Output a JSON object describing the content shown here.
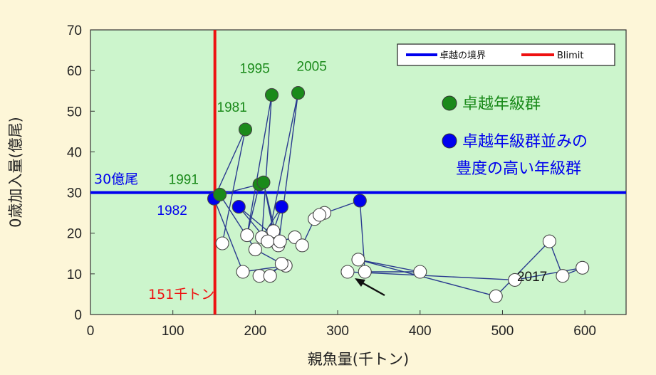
{
  "chart_data": {
    "type": "scatter",
    "xlabel": "親魚量(千トン)",
    "ylabel": "0歳加入量(億尾)",
    "xlim": [
      0,
      650
    ],
    "ylim": [
      0,
      70
    ],
    "x_ticks": [
      "0",
      "100",
      "200",
      "300",
      "400",
      "500",
      "600"
    ],
    "y_ticks": [
      "0",
      "10",
      "20",
      "30",
      "40",
      "50",
      "60",
      "70"
    ],
    "grid": false,
    "legend_position": "top-right",
    "legend": [
      {
        "label": "卓越の境界",
        "color": "#0000ee"
      },
      {
        "label": "Blimit",
        "color": "#ee1111"
      }
    ],
    "reference_lines": [
      {
        "orientation": "horizontal",
        "value": 30,
        "label": "30億尾",
        "color": "#0000ee"
      },
      {
        "orientation": "vertical",
        "value": 151,
        "label": "151千トン",
        "color": "#ee1111"
      }
    ],
    "categories_legend": [
      {
        "label": "卓越年級群",
        "color": "#1a8a1a"
      },
      {
        "label": "卓越年級群並みの豊度の高い年級群",
        "lines": [
          "卓越年級群並みの",
          "豊度の高い年級群"
        ],
        "color": "#0000ee"
      }
    ],
    "series": [
      {
        "style": "connected",
        "points": [
          {
            "x": 160,
            "y": 17.5,
            "cls": "white"
          },
          {
            "x": 188,
            "y": 45.5,
            "cls": "green"
          },
          {
            "x": 150,
            "y": 28.5,
            "cls": "blue"
          },
          {
            "x": 185,
            "y": 10.5,
            "cls": "white"
          },
          {
            "x": 237,
            "y": 12.0,
            "cls": "white"
          },
          {
            "x": 205,
            "y": 9.5,
            "cls": "white"
          },
          {
            "x": 218,
            "y": 9.5,
            "cls": "white"
          },
          {
            "x": 232,
            "y": 12.5,
            "cls": "white"
          },
          {
            "x": 200,
            "y": 16.0,
            "cls": "white"
          },
          {
            "x": 157,
            "y": 29.5,
            "cls": "green"
          },
          {
            "x": 205,
            "y": 32.0,
            "cls": "green"
          },
          {
            "x": 190,
            "y": 19.5,
            "cls": "white"
          },
          {
            "x": 220,
            "y": 54.0,
            "cls": "green"
          },
          {
            "x": 208,
            "y": 19.0,
            "cls": "white"
          },
          {
            "x": 232,
            "y": 26.5,
            "cls": "blue"
          },
          {
            "x": 222,
            "y": 20.5,
            "cls": "white"
          },
          {
            "x": 210,
            "y": 32.5,
            "cls": "green"
          },
          {
            "x": 228,
            "y": 17.0,
            "cls": "white"
          },
          {
            "x": 252,
            "y": 54.5,
            "cls": "green"
          },
          {
            "x": 215,
            "y": 18.0,
            "cls": "white"
          },
          {
            "x": 180,
            "y": 26.5,
            "cls": "blue"
          },
          {
            "x": 230,
            "y": 18.0,
            "cls": "white"
          },
          {
            "x": 248,
            "y": 19.0,
            "cls": "white"
          },
          {
            "x": 257,
            "y": 17.0,
            "cls": "white"
          },
          {
            "x": 272,
            "y": 23.5,
            "cls": "white"
          },
          {
            "x": 284,
            "y": 25.0,
            "cls": "white"
          },
          {
            "x": 278,
            "y": 24.5,
            "cls": "white"
          },
          {
            "x": 327,
            "y": 28.0,
            "cls": "blue"
          },
          {
            "x": 333,
            "y": 10.5,
            "cls": "white"
          },
          {
            "x": 400,
            "y": 10.5,
            "cls": "white"
          },
          {
            "x": 325,
            "y": 13.5,
            "cls": "white"
          },
          {
            "x": 492,
            "y": 4.5,
            "cls": "white"
          },
          {
            "x": 557,
            "y": 18.0,
            "cls": "white"
          },
          {
            "x": 573,
            "y": 9.5,
            "cls": "white"
          },
          {
            "x": 597,
            "y": 11.5,
            "cls": "white"
          },
          {
            "x": 515,
            "y": 8.5,
            "cls": "white"
          },
          {
            "x": 312,
            "y": 10.5,
            "cls": "white"
          }
        ]
      }
    ],
    "point_labels": [
      {
        "text": "1981",
        "x": 188,
        "y": 45.5,
        "color": "#1a8a1a"
      },
      {
        "text": "1995",
        "x": 220,
        "y": 54.0,
        "color": "#1a8a1a"
      },
      {
        "text": "2005",
        "x": 252,
        "y": 54.5,
        "color": "#1a8a1a"
      },
      {
        "text": "1991",
        "x": 157,
        "y": 29.5,
        "color": "#1a8a1a"
      },
      {
        "text": "1982",
        "x": 150,
        "y": 28.5,
        "color": "#0000ee"
      },
      {
        "text": "2017",
        "x": 312,
        "y": 10.5,
        "color": "#111111"
      }
    ],
    "colors": {
      "plot_background": "#ccf5cc",
      "page_background": "#fdf6d8",
      "green": "#1a8a1a",
      "blue": "#0000ee",
      "red": "#ee1111",
      "white_fill": "#ffffff",
      "line": "#2a3b8f"
    }
  }
}
